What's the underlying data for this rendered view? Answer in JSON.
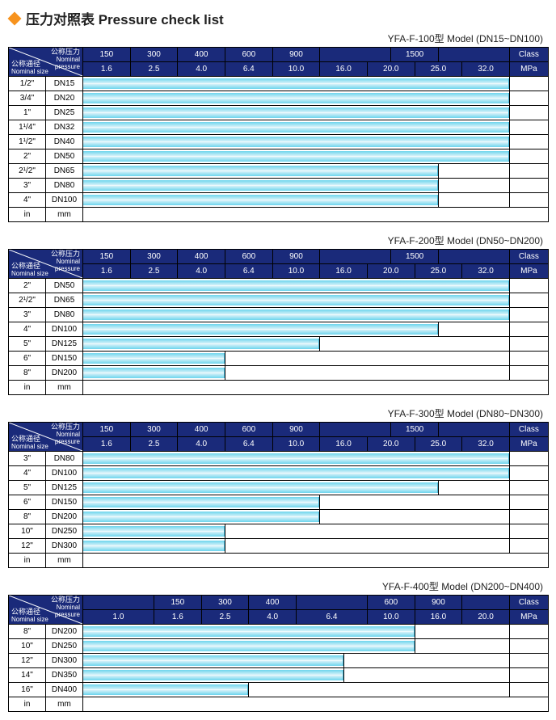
{
  "title": "压力对照表 Pressure check list",
  "corner": {
    "np1": "公称压力",
    "np2": "Nominal",
    "np3": "pressure",
    "ns1": "公称通径",
    "ns2": "Nominal size"
  },
  "unit_in": "in",
  "unit_mm": "mm",
  "unit_class": "Class",
  "unit_mpa": "MPa",
  "tables": [
    {
      "model": "YFA-F-100型  Model (DN15~DN100)",
      "class_cols": [
        "150",
        "300",
        "400",
        "600",
        "900",
        "",
        "1500",
        ""
      ],
      "mpa_cols": [
        "1.6",
        "2.5",
        "4.0",
        "6.4",
        "10.0",
        "16.0",
        "20.0",
        "25.0",
        "32.0"
      ],
      "span_map": [
        0,
        0,
        1,
        1,
        2,
        2,
        3,
        3,
        4,
        4,
        5,
        5,
        5,
        6,
        6,
        7,
        7,
        7
      ],
      "rows": [
        {
          "in": "1/2\"",
          "mm": "DN15",
          "bar": 18
        },
        {
          "in": "3/4\"",
          "mm": "DN20",
          "bar": 18
        },
        {
          "in": "1\"",
          "mm": "DN25",
          "bar": 18
        },
        {
          "in": "1¹/4\"",
          "mm": "DN32",
          "bar": 18
        },
        {
          "in": "1¹/2\"",
          "mm": "DN40",
          "bar": 18
        },
        {
          "in": "2\"",
          "mm": "DN50",
          "bar": 18
        },
        {
          "in": "2¹/2\"",
          "mm": "DN65",
          "bar": 15
        },
        {
          "in": "3\"",
          "mm": "DN80",
          "bar": 15
        },
        {
          "in": "4\"",
          "mm": "DN100",
          "bar": 15
        }
      ]
    },
    {
      "model": "YFA-F-200型  Model (DN50~DN200)",
      "class_cols": [
        "150",
        "300",
        "400",
        "600",
        "900",
        "",
        "1500",
        ""
      ],
      "mpa_cols": [
        "1.6",
        "2.5",
        "4.0",
        "6.4",
        "10.0",
        "16.0",
        "20.0",
        "25.0",
        "32.0"
      ],
      "span_map": [
        0,
        0,
        1,
        1,
        2,
        2,
        3,
        3,
        4,
        4,
        5,
        5,
        5,
        6,
        6,
        7,
        7,
        7
      ],
      "rows": [
        {
          "in": "2\"",
          "mm": "DN50",
          "bar": 18
        },
        {
          "in": "2¹/2\"",
          "mm": "DN65",
          "bar": 18
        },
        {
          "in": "3\"",
          "mm": "DN80",
          "bar": 18
        },
        {
          "in": "4\"",
          "mm": "DN100",
          "bar": 15
        },
        {
          "in": "5\"",
          "mm": "DN125",
          "bar": 10
        },
        {
          "in": "6\"",
          "mm": "DN150",
          "bar": 6
        },
        {
          "in": "8\"",
          "mm": "DN200",
          "bar": 6
        }
      ]
    },
    {
      "model": "YFA-F-300型  Model (DN80~DN300)",
      "class_cols": [
        "150",
        "300",
        "400",
        "600",
        "900",
        "",
        "1500",
        ""
      ],
      "mpa_cols": [
        "1.6",
        "2.5",
        "4.0",
        "6.4",
        "10.0",
        "16.0",
        "20.0",
        "25.0",
        "32.0"
      ],
      "span_map": [
        0,
        0,
        1,
        1,
        2,
        2,
        3,
        3,
        4,
        4,
        5,
        5,
        5,
        6,
        6,
        7,
        7,
        7
      ],
      "rows": [
        {
          "in": "3\"",
          "mm": "DN80",
          "bar": 18
        },
        {
          "in": "4\"",
          "mm": "DN100",
          "bar": 18
        },
        {
          "in": "5\"",
          "mm": "DN125",
          "bar": 15
        },
        {
          "in": "6\"",
          "mm": "DN150",
          "bar": 10
        },
        {
          "in": "8\"",
          "mm": "DN200",
          "bar": 10
        },
        {
          "in": "10\"",
          "mm": "DN250",
          "bar": 6
        },
        {
          "in": "12\"",
          "mm": "DN300",
          "bar": 6
        }
      ]
    },
    {
      "model": "YFA-F-400型  Model (DN200~DN400)",
      "class_cols": [
        "",
        "150",
        "300",
        "400",
        "",
        "600",
        "900",
        ""
      ],
      "mpa_cols": [
        "1.0",
        "1.6",
        "2.5",
        "4.0",
        "6.4",
        "10.0",
        "16.0",
        "20.0"
      ],
      "span_map": [
        0,
        0,
        0,
        1,
        1,
        2,
        2,
        3,
        3,
        4,
        4,
        4,
        5,
        5,
        6,
        6,
        7,
        7
      ],
      "micro": 18,
      "rows": [
        {
          "in": "8\"",
          "mm": "DN200",
          "bar": 14
        },
        {
          "in": "10\"",
          "mm": "DN250",
          "bar": 14
        },
        {
          "in": "12\"",
          "mm": "DN300",
          "bar": 11
        },
        {
          "in": "14\"",
          "mm": "DN350",
          "bar": 11
        },
        {
          "in": "16\"",
          "mm": "DN400",
          "bar": 7
        }
      ]
    }
  ],
  "colors": {
    "header_bg": "#1a2a7a",
    "bar_grad": [
      "#6dd5ed",
      "#d4f1f9",
      "#ffffff"
    ]
  }
}
